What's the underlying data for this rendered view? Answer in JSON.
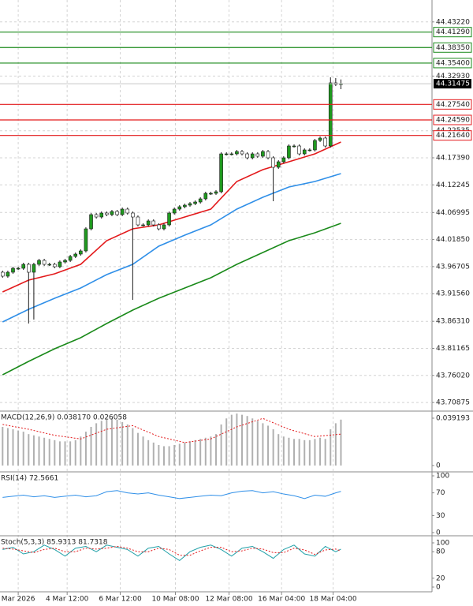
{
  "chart_data": [
    {
      "type": "candlestick",
      "grid": true,
      "up_color": "#1f9a1f",
      "down_color": "#ffffff",
      "xlim": [
        -0.5,
        82.5
      ],
      "ylim": [
        43.6939,
        44.4739
      ],
      "yticks": [
        {
          "value": 44.4322,
          "label": "44.43220"
        },
        {
          "value": 44.3293,
          "label": "44.32930"
        },
        44.22535,
        {
          "value": 44.1739,
          "label": "44.17390"
        },
        44.12245,
        44.06995,
        {
          "value": 44.0185,
          "label": "44.01850"
        },
        43.96705,
        {
          "value": 43.9156,
          "label": "43.91560"
        },
        {
          "value": 43.8631,
          "label": "43.86310"
        },
        43.81165,
        {
          "value": 43.7602,
          "label": "43.76020"
        },
        43.70875
      ],
      "xticks": [
        {
          "value": 3,
          "label": "Mar 2026"
        },
        {
          "value": 12.4,
          "label": "4 Mar 12:00"
        },
        {
          "value": 22.6,
          "label": "6 Mar 12:00"
        },
        {
          "value": 33.2,
          "label": "10 Mar 08:00"
        },
        {
          "value": 43.5,
          "label": "12 Mar 08:00"
        },
        {
          "value": 53.6,
          "label": "16 Mar 04:00"
        },
        {
          "value": 63.5,
          "label": "18 Mar 04:00"
        }
      ],
      "open": [
        43.9564,
        43.9489,
        43.9564,
        43.9639,
        43.9639,
        43.9714,
        43.9564,
        43.9714,
        43.9789,
        43.9714,
        43.9714,
        43.9669,
        43.9759,
        43.9789,
        43.9864,
        43.9909,
        43.9969,
        44.0389,
        44.0659,
        44.0614,
        44.0689,
        44.0659,
        44.0719,
        44.0659,
        44.0764,
        44.0689,
        44.0614,
        44.0464,
        44.0464,
        44.0539,
        44.0464,
        44.0389,
        44.0464,
        44.0689,
        44.0764,
        44.0809,
        44.0839,
        44.0869,
        44.0899,
        44.0959,
        44.1064,
        44.1064,
        44.1094,
        44.1814,
        44.1814,
        44.1814,
        44.1859,
        44.1814,
        44.1739,
        44.1814,
        44.1769,
        44.1859,
        44.1739,
        44.1559,
        44.1664,
        44.1739,
        44.1964,
        44.1964,
        44.1814,
        44.1889,
        44.1889,
        44.2069,
        44.2114,
        44.1964,
        44.3164,
        44.3134
      ],
      "high": [
        43.9594,
        43.9594,
        43.9669,
        43.9669,
        43.9744,
        43.9744,
        43.9744,
        43.9819,
        43.9819,
        43.9744,
        43.9744,
        43.9789,
        43.9819,
        43.9894,
        43.9939,
        43.9999,
        44.0419,
        44.0689,
        44.0689,
        44.0719,
        44.0719,
        44.0749,
        44.0749,
        44.0794,
        44.0794,
        44.0719,
        44.0644,
        44.0494,
        44.0569,
        44.0569,
        44.0494,
        44.0494,
        44.0719,
        44.0794,
        44.0839,
        44.0869,
        44.0899,
        44.0929,
        44.0989,
        44.1094,
        44.1094,
        44.1124,
        44.1844,
        44.1844,
        44.1844,
        44.1889,
        44.1889,
        44.1844,
        44.1844,
        44.1844,
        44.1889,
        44.1889,
        44.1769,
        44.1694,
        44.1769,
        44.1994,
        44.1994,
        44.1994,
        44.1919,
        44.1919,
        44.2099,
        44.2144,
        44.2144,
        44.3269,
        44.3254,
        44.3229
      ],
      "low": [
        43.9459,
        43.9459,
        43.9534,
        43.9609,
        43.9609,
        43.8589,
        43.8664,
        43.9684,
        43.9684,
        43.9684,
        43.9639,
        43.9639,
        43.9729,
        43.9759,
        43.9834,
        43.9879,
        43.9939,
        44.0359,
        44.0584,
        44.0584,
        44.0629,
        44.0629,
        44.0629,
        44.0629,
        44.0659,
        43.9039,
        44.0434,
        44.0434,
        44.0434,
        44.0434,
        44.0359,
        44.0359,
        44.0434,
        44.0659,
        44.0734,
        44.0779,
        44.0809,
        44.0839,
        44.0869,
        44.0929,
        44.1034,
        44.1034,
        44.1064,
        44.1784,
        44.1784,
        44.1784,
        44.1784,
        44.1709,
        44.1709,
        44.1739,
        44.1739,
        44.1709,
        44.0914,
        44.1529,
        44.1634,
        44.1709,
        44.1934,
        44.1784,
        44.1784,
        44.1859,
        44.1859,
        44.2039,
        44.1934,
        44.1934,
        44.3104,
        44.3044
      ],
      "close": [
        43.9489,
        43.9564,
        43.9639,
        43.9639,
        43.9714,
        43.9564,
        43.9714,
        43.9789,
        43.9714,
        43.9714,
        43.9669,
        43.9759,
        43.9789,
        43.9864,
        43.9909,
        43.9969,
        44.0389,
        44.0659,
        44.0614,
        44.0689,
        44.0659,
        44.0719,
        44.0659,
        44.0764,
        44.0689,
        44.0614,
        44.0464,
        44.0464,
        44.0539,
        44.0464,
        44.0389,
        44.0464,
        44.0689,
        44.0764,
        44.0809,
        44.0839,
        44.0869,
        44.0899,
        44.0959,
        44.1064,
        44.1064,
        44.1094,
        44.1814,
        44.1814,
        44.1814,
        44.1859,
        44.1814,
        44.1739,
        44.1814,
        44.1769,
        44.1859,
        44.1739,
        44.1559,
        44.1664,
        44.1739,
        44.1964,
        44.1964,
        44.1814,
        44.1889,
        44.1889,
        44.2069,
        44.2114,
        44.1964,
        44.3164,
        44.3134,
        44.3147
      ],
      "series": [
        {
          "color": "#e31a1c",
          "x": [
            0,
            5,
            10,
            15,
            20,
            25,
            30,
            35,
            40,
            45,
            50,
            55,
            60,
            65
          ],
          "values": [
            43.9189,
            43.9414,
            43.9534,
            43.9714,
            44.0164,
            44.0389,
            44.0464,
            44.0614,
            44.0764,
            44.1289,
            44.1514,
            44.1664,
            44.1814,
            44.2039
          ]
        },
        {
          "color": "#2f8fe8",
          "x": [
            0,
            5,
            10,
            15,
            20,
            25,
            30,
            35,
            40,
            45,
            50,
            55,
            60,
            65
          ],
          "values": [
            43.8619,
            43.8859,
            43.9069,
            43.9264,
            43.9519,
            43.9714,
            44.0059,
            44.0269,
            44.0464,
            44.0764,
            44.0989,
            44.1184,
            44.1289,
            44.1439
          ]
        },
        {
          "color": "#1a8a1a",
          "x": [
            0,
            5,
            10,
            15,
            20,
            25,
            30,
            35,
            40,
            45,
            50,
            55,
            60,
            65
          ],
          "values": [
            43.7614,
            43.7869,
            43.8109,
            43.8319,
            43.8589,
            43.8844,
            43.9069,
            43.9264,
            43.9459,
            43.9714,
            43.9939,
            44.0164,
            44.0314,
            44.0494
          ]
        }
      ],
      "levels": [
        {
          "value": 44.4129,
          "label": "44.41290",
          "color": "#1a8a1a"
        },
        {
          "value": 44.3835,
          "label": "44.38350",
          "color": "#1a8a1a"
        },
        {
          "value": 44.354,
          "label": "44.35400",
          "color": "#1a8a1a"
        },
        {
          "value": 44.2754,
          "label": "44.27540",
          "color": "#e31a1c"
        },
        {
          "value": 44.2459,
          "label": "44.24590",
          "color": "#e31a1c"
        },
        {
          "value": 44.2164,
          "label": "44.21640",
          "color": "#e31a1c"
        }
      ],
      "last_price": 44.31475
    },
    {
      "type": "macd",
      "label": "MACD(12,26,9) 0.038170 0.026058",
      "ylim": [
        -0.0046,
        0.0444
      ],
      "yticks": [
        0.039193,
        0
      ],
      "hist_color": "#b0b0b0",
      "values": [
        0.032,
        0.031,
        0.03,
        0.029,
        0.028,
        0.026,
        0.025,
        0.024,
        0.023,
        0.022,
        0.021,
        0.02,
        0.02,
        0.02,
        0.021,
        0.024,
        0.028,
        0.032,
        0.035,
        0.037,
        0.038,
        0.039,
        0.038,
        0.036,
        0.034,
        0.031,
        0.027,
        0.024,
        0.021,
        0.019,
        0.017,
        0.016,
        0.016,
        0.017,
        0.018,
        0.019,
        0.02,
        0.021,
        0.022,
        0.023,
        0.024,
        0.026,
        0.034,
        0.039,
        0.042,
        0.043,
        0.042,
        0.041,
        0.039,
        0.037,
        0.035,
        0.033,
        0.03,
        0.026,
        0.024,
        0.023,
        0.022,
        0.022,
        0.021,
        0.021,
        0.022,
        0.023,
        0.022,
        0.03,
        0.035,
        0.038
      ],
      "series": [
        {
          "color": "#e31a1c",
          "dashed": true,
          "x": [
            0,
            5,
            10,
            15,
            20,
            25,
            30,
            35,
            40,
            45,
            50,
            55,
            60,
            65
          ],
          "values": [
            0.034,
            0.03,
            0.025,
            0.022,
            0.03,
            0.033,
            0.024,
            0.019,
            0.022,
            0.032,
            0.039,
            0.03,
            0.024,
            0.026
          ]
        }
      ]
    },
    {
      "type": "line",
      "label": "RSI(14) 72.5661",
      "ylim": [
        -4.2,
        105.6
      ],
      "yticks": [
        100,
        70,
        30,
        0
      ],
      "series": [
        {
          "color": "#2f8fe8",
          "dashed": false,
          "x": [
            0,
            2,
            4,
            6,
            8,
            10,
            12,
            14,
            16,
            18,
            20,
            22,
            24,
            26,
            28,
            30,
            32,
            34,
            36,
            38,
            40,
            42,
            44,
            46,
            48,
            50,
            52,
            54,
            56,
            58,
            60,
            62,
            64,
            65
          ],
          "values": [
            62,
            64,
            66,
            63,
            65,
            62,
            64,
            66,
            63,
            65,
            72,
            74,
            70,
            68,
            70,
            66,
            63,
            60,
            62,
            64,
            66,
            65,
            70,
            73,
            74,
            70,
            72,
            68,
            65,
            60,
            66,
            64,
            70,
            72.5661
          ]
        }
      ]
    },
    {
      "type": "line",
      "label": "Stoch(5,3,3) 85.9313 81.7318",
      "ylim": [
        -10.7,
        114.3
      ],
      "yticks": [
        100,
        80,
        20,
        0
      ],
      "series": [
        {
          "color": "#20a0a8",
          "dashed": false,
          "x": [
            0,
            2,
            4,
            6,
            8,
            10,
            12,
            14,
            16,
            18,
            20,
            22,
            24,
            26,
            28,
            30,
            32,
            34,
            36,
            38,
            40,
            42,
            44,
            46,
            48,
            50,
            52,
            54,
            56,
            58,
            60,
            62,
            64,
            65
          ],
          "values": [
            85,
            90,
            75,
            80,
            95,
            85,
            70,
            88,
            92,
            80,
            95,
            90,
            85,
            70,
            88,
            92,
            75,
            60,
            80,
            90,
            95,
            85,
            70,
            88,
            92,
            80,
            65,
            85,
            95,
            75,
            70,
            92,
            80,
            85.9313
          ]
        },
        {
          "color": "#e31a1c",
          "dashed": true,
          "x": [
            0,
            2,
            4,
            6,
            8,
            10,
            12,
            14,
            16,
            18,
            20,
            22,
            24,
            26,
            28,
            30,
            32,
            34,
            36,
            38,
            40,
            42,
            44,
            46,
            48,
            50,
            52,
            54,
            56,
            58,
            60,
            62,
            64,
            65
          ],
          "values": [
            88,
            86,
            82,
            78,
            85,
            88,
            80,
            80,
            88,
            86,
            88,
            92,
            88,
            80,
            80,
            88,
            85,
            72,
            72,
            82,
            90,
            90,
            80,
            82,
            88,
            86,
            78,
            78,
            88,
            84,
            74,
            84,
            86,
            81.7318
          ]
        }
      ]
    }
  ]
}
